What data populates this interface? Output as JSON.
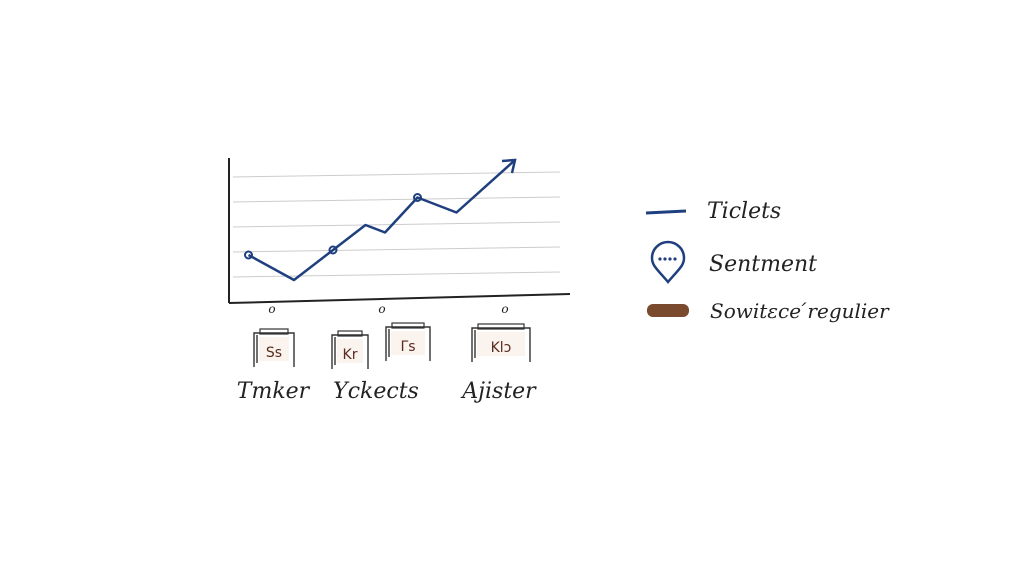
{
  "chart_data": {
    "type": "line",
    "title": "",
    "xlabel": "",
    "ylabel": "",
    "ylim": [
      0,
      6
    ],
    "grid": true,
    "x_tick_marks": [
      "o",
      "o",
      "o"
    ],
    "category_boxes": [
      "Ss",
      "Kr",
      "Γs",
      "Klɔ"
    ],
    "category_labels": [
      "Tmker",
      "Yckects",
      "Ajister"
    ],
    "series": [
      {
        "name": "Ticlets",
        "color": "#1f3f7f",
        "x": [
          0.3,
          1,
          1.6,
          2.1,
          2.4,
          2.9,
          3.5,
          4.4
        ],
        "values": [
          1.8,
          0.8,
          2.0,
          3.0,
          2.7,
          4.1,
          3.5,
          5.6
        ],
        "trend_arrow": true
      }
    ],
    "legend": {
      "placement": "right",
      "items": [
        {
          "label": "Ticlets",
          "icon": "line-icon",
          "color": "#1f3f7f"
        },
        {
          "label": "Sentment",
          "icon": "speech-pin-icon",
          "color": "#1f3f7f"
        },
        {
          "label": "Sowitεce ́regulier",
          "icon": "brown-swatch-icon",
          "color": "#7a4a2e"
        }
      ]
    }
  }
}
